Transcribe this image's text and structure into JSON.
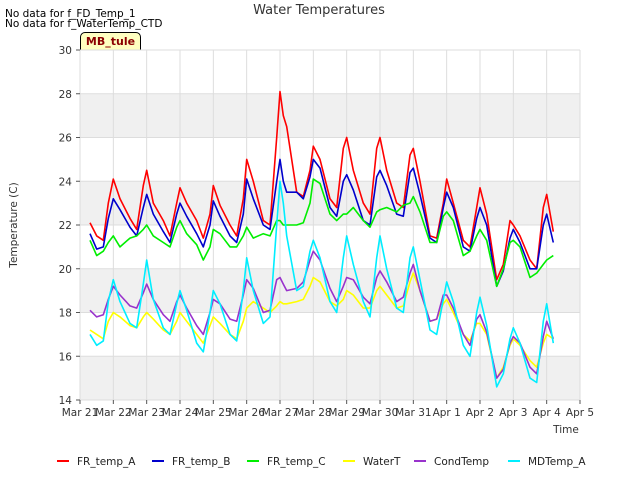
{
  "notes": [
    "No data for f_FD_Temp_1",
    "No data for f_WaterTemp_CTD"
  ],
  "site_label": "MB_tule",
  "chart_data": {
    "type": "line",
    "title": "Water Temperatures",
    "xlabel": "Time",
    "ylabel": "Temperature (C)",
    "ylim": [
      14,
      30
    ],
    "yticks": [
      14,
      16,
      18,
      20,
      22,
      24,
      26,
      28,
      30
    ],
    "x_tick_labels": [
      "Mar 21",
      "Mar 22",
      "Mar 23",
      "Mar 24",
      "Mar 25",
      "Mar 26",
      "Mar 27",
      "Mar 28",
      "Mar 29",
      "Mar 30",
      "Mar 31",
      "Apr 1",
      "Apr 2",
      "Apr 3",
      "Apr 4",
      "Apr 5"
    ],
    "x_unit": "days since Mar 21",
    "grid": true,
    "legend_position": "bottom",
    "series": [
      {
        "name": "FR_temp_A",
        "color": "#ff0000",
        "x": [
          0.3,
          0.5,
          0.7,
          0.85,
          1.0,
          1.2,
          1.5,
          1.7,
          1.9,
          2.0,
          2.2,
          2.5,
          2.7,
          2.9,
          3.0,
          3.2,
          3.5,
          3.7,
          3.9,
          4.0,
          4.2,
          4.5,
          4.7,
          4.9,
          5.0,
          5.2,
          5.5,
          5.7,
          5.9,
          6.0,
          6.1,
          6.2,
          6.5,
          6.7,
          6.9,
          7.0,
          7.2,
          7.5,
          7.7,
          7.9,
          8.0,
          8.2,
          8.5,
          8.7,
          8.9,
          9.0,
          9.2,
          9.5,
          9.7,
          9.9,
          10.0,
          10.2,
          10.5,
          10.7,
          10.9,
          11.0,
          11.2,
          11.5,
          11.7,
          11.9,
          12.0,
          12.2,
          12.5,
          12.7,
          12.9,
          13.0,
          13.2,
          13.5,
          13.7,
          13.9,
          14.0,
          14.2
        ],
        "y": [
          22.1,
          21.5,
          21.3,
          23.0,
          24.1,
          23.2,
          22.3,
          21.8,
          23.8,
          24.5,
          23.0,
          22.2,
          21.5,
          23.0,
          23.7,
          23.0,
          22.2,
          21.4,
          22.5,
          23.8,
          22.9,
          22.0,
          21.5,
          23.2,
          25.0,
          24.0,
          22.2,
          22.0,
          26.0,
          28.1,
          27.0,
          26.5,
          23.5,
          23.3,
          24.5,
          25.6,
          25.0,
          23.2,
          22.8,
          25.5,
          26.0,
          24.5,
          23.0,
          22.5,
          25.5,
          26.0,
          24.5,
          23.0,
          22.8,
          25.2,
          25.5,
          24.0,
          21.5,
          21.4,
          23.0,
          24.1,
          23.0,
          21.3,
          21.0,
          22.8,
          23.7,
          22.5,
          19.5,
          20.2,
          22.2,
          22.0,
          21.5,
          20.4,
          20.0,
          22.8,
          23.4,
          21.7
        ]
      },
      {
        "name": "FR_temp_B",
        "color": "#0000cc",
        "x": [
          0.3,
          0.5,
          0.7,
          0.85,
          1.0,
          1.2,
          1.5,
          1.7,
          1.9,
          2.0,
          2.2,
          2.5,
          2.7,
          2.9,
          3.0,
          3.2,
          3.5,
          3.7,
          3.9,
          4.0,
          4.2,
          4.5,
          4.7,
          4.9,
          5.0,
          5.2,
          5.5,
          5.7,
          5.9,
          6.0,
          6.1,
          6.2,
          6.5,
          6.7,
          6.9,
          7.0,
          7.2,
          7.5,
          7.7,
          7.9,
          8.0,
          8.2,
          8.5,
          8.7,
          8.9,
          9.0,
          9.2,
          9.5,
          9.7,
          9.9,
          10.0,
          10.2,
          10.5,
          10.7,
          10.9,
          11.0,
          11.2,
          11.5,
          11.7,
          11.9,
          12.0,
          12.2,
          12.5,
          12.7,
          12.9,
          13.0,
          13.2,
          13.5,
          13.7,
          13.9,
          14.0,
          14.2
        ],
        "y": [
          21.6,
          20.9,
          21.0,
          22.3,
          23.2,
          22.7,
          21.9,
          21.5,
          22.8,
          23.4,
          22.5,
          21.7,
          21.2,
          22.5,
          23.0,
          22.4,
          21.6,
          21.0,
          22.0,
          23.1,
          22.4,
          21.5,
          21.2,
          22.5,
          24.1,
          23.2,
          22.0,
          21.8,
          24.0,
          25.0,
          24.0,
          23.5,
          23.5,
          23.2,
          24.2,
          25.0,
          24.6,
          22.8,
          22.4,
          24.0,
          24.3,
          23.6,
          22.2,
          22.0,
          24.2,
          24.5,
          23.8,
          22.5,
          22.4,
          24.4,
          24.6,
          23.4,
          21.4,
          21.2,
          22.8,
          23.5,
          22.8,
          21.0,
          20.8,
          22.3,
          22.8,
          22.0,
          19.2,
          19.9,
          21.4,
          21.8,
          21.2,
          20.0,
          20.0,
          22.0,
          22.5,
          21.2
        ]
      },
      {
        "name": "FR_temp_C",
        "color": "#00ee00",
        "x": [
          0.3,
          0.5,
          0.7,
          0.85,
          1.0,
          1.2,
          1.5,
          1.7,
          1.9,
          2.0,
          2.2,
          2.5,
          2.7,
          2.9,
          3.0,
          3.2,
          3.5,
          3.7,
          3.9,
          4.0,
          4.2,
          4.5,
          4.7,
          4.9,
          5.0,
          5.2,
          5.5,
          5.7,
          5.9,
          6.0,
          6.1,
          6.2,
          6.5,
          6.7,
          6.9,
          7.0,
          7.2,
          7.5,
          7.7,
          7.9,
          8.0,
          8.2,
          8.5,
          8.7,
          8.9,
          9.0,
          9.2,
          9.5,
          9.7,
          9.9,
          10.0,
          10.2,
          10.5,
          10.7,
          10.9,
          11.0,
          11.2,
          11.5,
          11.7,
          11.9,
          12.0,
          12.2,
          12.5,
          12.7,
          12.9,
          13.0,
          13.2,
          13.5,
          13.7,
          13.9,
          14.0,
          14.2
        ],
        "y": [
          21.3,
          20.6,
          20.8,
          21.2,
          21.5,
          21.0,
          21.4,
          21.5,
          21.8,
          22.0,
          21.5,
          21.2,
          21.0,
          21.9,
          22.2,
          21.6,
          21.1,
          20.4,
          21.0,
          21.8,
          21.6,
          21.0,
          21.0,
          21.5,
          21.9,
          21.4,
          21.6,
          21.5,
          22.2,
          22.2,
          22.0,
          22.0,
          22.0,
          22.1,
          23.0,
          24.1,
          23.9,
          22.5,
          22.2,
          22.5,
          22.5,
          22.8,
          22.2,
          21.9,
          22.6,
          22.7,
          22.8,
          22.6,
          22.9,
          23.0,
          23.3,
          22.6,
          21.2,
          21.2,
          22.4,
          22.6,
          22.2,
          20.6,
          20.8,
          21.5,
          21.8,
          21.3,
          19.2,
          20.0,
          21.2,
          21.3,
          21.0,
          19.6,
          19.8,
          20.2,
          20.4,
          20.6
        ]
      },
      {
        "name": "WaterT",
        "color": "#ffff00",
        "x": [
          0.3,
          0.5,
          0.7,
          0.85,
          1.0,
          1.2,
          1.5,
          1.7,
          1.9,
          2.0,
          2.2,
          2.5,
          2.7,
          2.9,
          3.0,
          3.2,
          3.5,
          3.7,
          3.9,
          4.0,
          4.2,
          4.5,
          4.7,
          4.9,
          5.0,
          5.2,
          5.5,
          5.7,
          5.9,
          6.0,
          6.1,
          6.2,
          6.5,
          6.7,
          6.9,
          7.0,
          7.2,
          7.5,
          7.7,
          7.9,
          8.0,
          8.2,
          8.5,
          8.7,
          8.9,
          9.0,
          9.2,
          9.5,
          9.7,
          9.9,
          10.0,
          10.2,
          10.5,
          10.7,
          10.9,
          11.0,
          11.2,
          11.5,
          11.7,
          11.9,
          12.0,
          12.2,
          12.5,
          12.7,
          12.9,
          13.0,
          13.2,
          13.5,
          13.7,
          13.9,
          14.0,
          14.2
        ],
        "y": [
          17.2,
          17.0,
          16.8,
          17.6,
          18.0,
          17.8,
          17.4,
          17.3,
          17.8,
          18.0,
          17.7,
          17.2,
          17.0,
          17.6,
          18.0,
          17.6,
          17.0,
          16.6,
          17.4,
          17.8,
          17.5,
          17.0,
          16.8,
          17.6,
          18.2,
          18.5,
          18.2,
          18.0,
          18.3,
          18.5,
          18.4,
          18.4,
          18.5,
          18.6,
          19.2,
          19.6,
          19.4,
          18.5,
          18.3,
          18.6,
          19.0,
          18.8,
          18.2,
          18.2,
          19.0,
          19.2,
          18.8,
          18.2,
          18.3,
          19.4,
          19.8,
          19.0,
          17.6,
          17.7,
          18.4,
          18.6,
          18.0,
          17.0,
          16.7,
          17.5,
          17.5,
          17.0,
          15.0,
          15.5,
          16.5,
          16.8,
          16.5,
          15.8,
          15.5,
          16.6,
          17.0,
          16.8
        ]
      },
      {
        "name": "CondTemp",
        "color": "#9933cc",
        "x": [
          0.3,
          0.5,
          0.7,
          0.85,
          1.0,
          1.2,
          1.5,
          1.7,
          1.9,
          2.0,
          2.2,
          2.5,
          2.7,
          2.9,
          3.0,
          3.2,
          3.5,
          3.7,
          3.9,
          4.0,
          4.2,
          4.5,
          4.7,
          4.9,
          5.0,
          5.2,
          5.5,
          5.7,
          5.9,
          6.0,
          6.1,
          6.2,
          6.5,
          6.7,
          6.9,
          7.0,
          7.2,
          7.5,
          7.7,
          7.9,
          8.0,
          8.2,
          8.5,
          8.7,
          8.9,
          9.0,
          9.2,
          9.5,
          9.7,
          9.9,
          10.0,
          10.2,
          10.5,
          10.7,
          10.9,
          11.0,
          11.2,
          11.5,
          11.7,
          11.9,
          12.0,
          12.2,
          12.5,
          12.7,
          12.9,
          13.0,
          13.2,
          13.5,
          13.7,
          13.9,
          14.0,
          14.2
        ],
        "y": [
          18.1,
          17.8,
          17.9,
          18.6,
          19.2,
          18.8,
          18.3,
          18.2,
          18.9,
          19.3,
          18.6,
          17.9,
          17.6,
          18.5,
          18.8,
          18.2,
          17.4,
          17.0,
          18.0,
          18.6,
          18.4,
          17.7,
          17.6,
          18.8,
          19.5,
          19.1,
          18.0,
          18.1,
          19.5,
          19.6,
          19.3,
          19.0,
          19.1,
          19.4,
          20.4,
          20.8,
          20.4,
          19.1,
          18.5,
          19.2,
          19.6,
          19.5,
          18.7,
          18.4,
          19.6,
          19.9,
          19.4,
          18.5,
          18.7,
          19.8,
          20.2,
          19.0,
          17.6,
          17.7,
          18.8,
          18.8,
          18.2,
          17.0,
          16.5,
          17.7,
          17.9,
          17.1,
          15.0,
          15.4,
          16.6,
          16.9,
          16.6,
          15.5,
          15.2,
          16.9,
          17.6,
          16.8
        ]
      },
      {
        "name": "MDTemp_A",
        "color": "#00eeff",
        "x": [
          0.3,
          0.5,
          0.7,
          0.85,
          1.0,
          1.2,
          1.5,
          1.7,
          1.9,
          2.0,
          2.2,
          2.5,
          2.7,
          2.9,
          3.0,
          3.2,
          3.5,
          3.7,
          3.9,
          4.0,
          4.2,
          4.5,
          4.7,
          4.9,
          5.0,
          5.2,
          5.5,
          5.7,
          5.9,
          6.0,
          6.1,
          6.2,
          6.5,
          6.7,
          6.9,
          7.0,
          7.2,
          7.5,
          7.7,
          7.9,
          8.0,
          8.2,
          8.5,
          8.7,
          8.9,
          9.0,
          9.2,
          9.5,
          9.7,
          9.9,
          10.0,
          10.2,
          10.5,
          10.7,
          10.9,
          11.0,
          11.2,
          11.5,
          11.7,
          11.9,
          12.0,
          12.2,
          12.5,
          12.7,
          12.9,
          13.0,
          13.2,
          13.5,
          13.7,
          13.9,
          14.0,
          14.2
        ],
        "y": [
          17.0,
          16.5,
          16.7,
          18.5,
          19.5,
          18.5,
          17.5,
          17.3,
          19.3,
          20.4,
          18.6,
          17.3,
          17.0,
          18.4,
          19.0,
          18.1,
          16.6,
          16.2,
          18.0,
          19.0,
          18.4,
          17.0,
          16.7,
          19.0,
          20.5,
          19.0,
          17.5,
          17.8,
          22.0,
          24.0,
          23.0,
          21.5,
          19.0,
          19.2,
          20.8,
          21.3,
          20.5,
          18.5,
          18.0,
          20.5,
          21.5,
          20.2,
          18.5,
          17.8,
          20.5,
          21.5,
          20.0,
          18.2,
          18.0,
          20.5,
          21.0,
          19.5,
          17.2,
          17.0,
          18.6,
          19.4,
          18.5,
          16.5,
          16.0,
          18.0,
          18.7,
          17.4,
          14.6,
          15.2,
          16.8,
          17.3,
          16.6,
          15.0,
          14.8,
          17.6,
          18.4,
          16.6
        ]
      }
    ]
  }
}
